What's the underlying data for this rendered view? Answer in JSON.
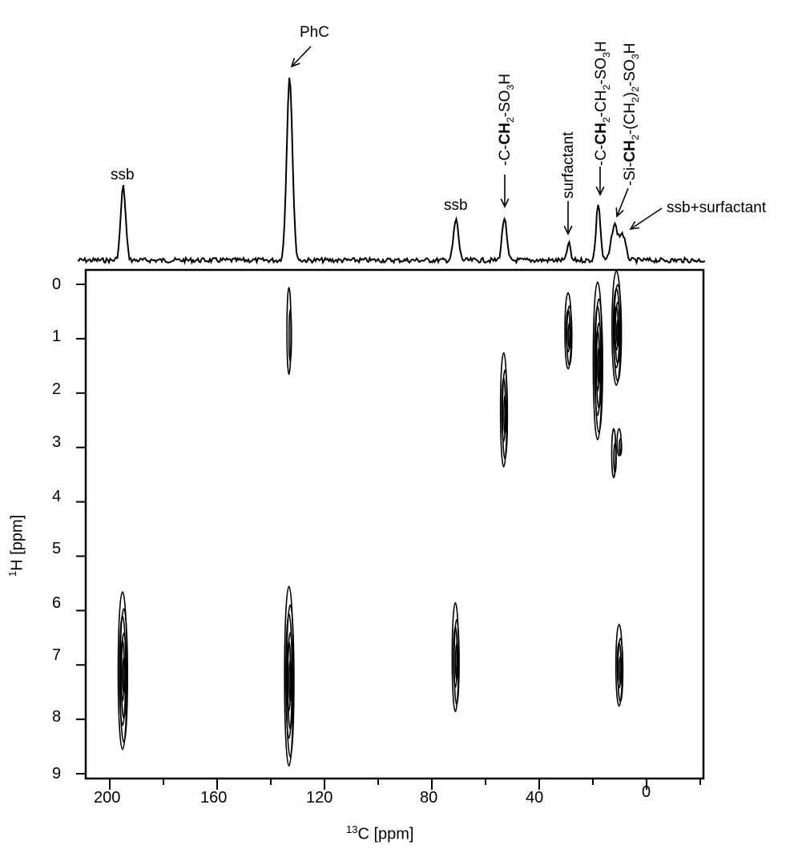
{
  "chart_data": {
    "type": "heatmap",
    "subtype": "2D HETCOR contour plot with 1D 13C projection",
    "xlabel": "13C [ppm]",
    "ylabel": "1H [ppm]",
    "xlim": [
      210,
      -20
    ],
    "ylim": [
      9.2,
      -0.3
    ],
    "x_ticks": [
      200,
      160,
      120,
      80,
      40,
      0
    ],
    "x_minor_ticks": [
      180,
      140,
      100,
      60,
      20,
      -20
    ],
    "y_ticks": [
      0,
      1,
      2,
      3,
      4,
      5,
      6,
      7,
      8,
      9
    ],
    "grid": false,
    "projection_peaks": [
      {
        "label": "ssb",
        "c_ppm": 195,
        "rel_height": 0.4
      },
      {
        "label": "PhC",
        "c_ppm": 133,
        "rel_height": 1.0
      },
      {
        "label": "ssb",
        "c_ppm": 71,
        "rel_height": 0.22
      },
      {
        "label": "-C-CH2-SO3H",
        "c_ppm": 53,
        "rel_height": 0.23
      },
      {
        "label": "surfactant",
        "c_ppm": 29,
        "rel_height": 0.1
      },
      {
        "label": "-C-CH2-CH2-SO3H",
        "c_ppm": 18,
        "rel_height": 0.31
      },
      {
        "label": "-Si-CH2-(CH2)2-SO3H",
        "c_ppm": 12,
        "rel_height": 0.19
      },
      {
        "label": "ssb+surfactant",
        "c_ppm": 9,
        "rel_height": 0.14
      }
    ],
    "cross_peaks": [
      {
        "c_ppm": 195,
        "h_ppm_center": 7.0,
        "h_range": [
          5.7,
          8.6
        ],
        "intensity": "strong"
      },
      {
        "c_ppm": 133,
        "h_ppm_center": 7.0,
        "h_range": [
          5.6,
          8.9
        ],
        "intensity": "strong"
      },
      {
        "c_ppm": 133,
        "h_ppm_center": 0.9,
        "h_range": [
          0.1,
          1.7
        ],
        "intensity": "weak"
      },
      {
        "c_ppm": 71,
        "h_ppm_center": 6.9,
        "h_range": [
          5.9,
          7.9
        ],
        "intensity": "medium"
      },
      {
        "c_ppm": 53,
        "h_ppm_center": 2.5,
        "h_range": [
          1.3,
          3.4
        ],
        "intensity": "medium"
      },
      {
        "c_ppm": 29,
        "h_ppm_center": 0.9,
        "h_range": [
          0.2,
          1.6
        ],
        "intensity": "medium"
      },
      {
        "c_ppm": 18,
        "h_ppm_center": 1.3,
        "h_range": [
          0.0,
          2.9
        ],
        "intensity": "strong"
      },
      {
        "c_ppm": 11,
        "h_ppm_center": 0.9,
        "h_range": [
          -0.2,
          1.9
        ],
        "intensity": "strong"
      },
      {
        "c_ppm": 12,
        "h_ppm_center": 3.1,
        "h_range": [
          2.7,
          3.6
        ],
        "intensity": "weak"
      },
      {
        "c_ppm": 10,
        "h_ppm_center": 2.9,
        "h_range": [
          2.7,
          3.2
        ],
        "intensity": "weak"
      },
      {
        "c_ppm": 10,
        "h_ppm_center": 7.0,
        "h_range": [
          6.3,
          7.8
        ],
        "intensity": "medium"
      }
    ]
  },
  "annotations": {
    "ssb_left": "ssb",
    "phc": "PhC",
    "ssb_mid": "ssb",
    "c_ch2_so3h": {
      "pre": "-C-",
      "bold": "C",
      "post": "H",
      "sub1": "2",
      "mid": "-SO",
      "sub2": "3",
      "end": "H"
    },
    "surfactant": "surfactant",
    "c_ch2_ch2_so3h": {
      "pre": "-C-",
      "bold": "C",
      "post": "H",
      "sub1": "2",
      "mid": "-CH",
      "sub2": "2",
      "mid2": "-SO",
      "sub3": "3",
      "end": "H"
    },
    "si_ch2": {
      "pre": "-Si-",
      "bold": "C",
      "post": "H",
      "sub1": "2",
      "mid": "-(CH",
      "sub2": "2",
      "mid2": ")",
      "sub3": "2",
      "mid3": "-SO",
      "sub4": "3",
      "end": "H"
    },
    "ssb_surfactant": "ssb+surfactant"
  },
  "axes": {
    "x_ticks": [
      "200",
      "160",
      "120",
      "80",
      "40",
      "0"
    ],
    "y_ticks": [
      "0",
      "1",
      "2",
      "3",
      "4",
      "5",
      "6",
      "7",
      "8",
      "9"
    ],
    "x_title_sup": "13",
    "x_title_main": "C [ppm]",
    "y_title_sup": "1",
    "y_title_main": "H [ppm]"
  },
  "colors": {
    "ink": "#000000",
    "background": "#ffffff"
  }
}
